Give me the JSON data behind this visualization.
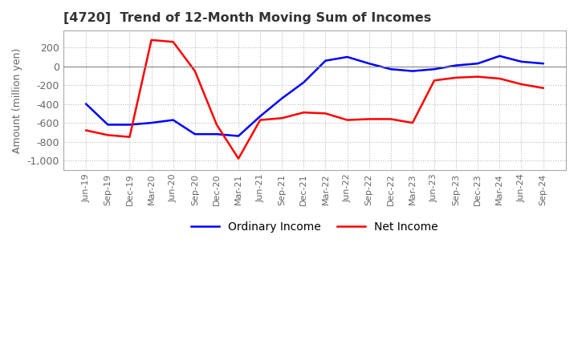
{
  "title": "[4720]  Trend of 12-Month Moving Sum of Incomes",
  "ylabel": "Amount (million yen)",
  "ylim": [
    -1100,
    380
  ],
  "yticks": [
    200,
    0,
    -200,
    -400,
    -600,
    -800,
    -1000
  ],
  "x_labels": [
    "Jun-19",
    "Sep-19",
    "Dec-19",
    "Mar-20",
    "Jun-20",
    "Sep-20",
    "Dec-20",
    "Mar-21",
    "Jun-21",
    "Sep-21",
    "Dec-21",
    "Mar-22",
    "Jun-22",
    "Sep-22",
    "Dec-22",
    "Mar-23",
    "Jun-23",
    "Sep-23",
    "Dec-23",
    "Mar-24",
    "Jun-24",
    "Sep-24"
  ],
  "ordinary_income": [
    -400,
    -620,
    -620,
    -600,
    -570,
    -720,
    -720,
    -740,
    -530,
    -340,
    -170,
    60,
    100,
    30,
    -30,
    -50,
    -30,
    10,
    30,
    110,
    50,
    30
  ],
  "net_income": [
    -680,
    -730,
    -750,
    280,
    260,
    -50,
    -620,
    -980,
    -570,
    -550,
    -490,
    -500,
    -570,
    -560,
    -560,
    -600,
    -150,
    -120,
    -110,
    -130,
    -190,
    -230
  ],
  "ordinary_color": "#0000FF",
  "net_color": "#FF0000",
  "grid_color": "#BBBBBB",
  "background_color": "#FFFFFF",
  "legend_labels": [
    "Ordinary Income",
    "Net Income"
  ],
  "title_color": "#333333",
  "tick_color": "#666666"
}
